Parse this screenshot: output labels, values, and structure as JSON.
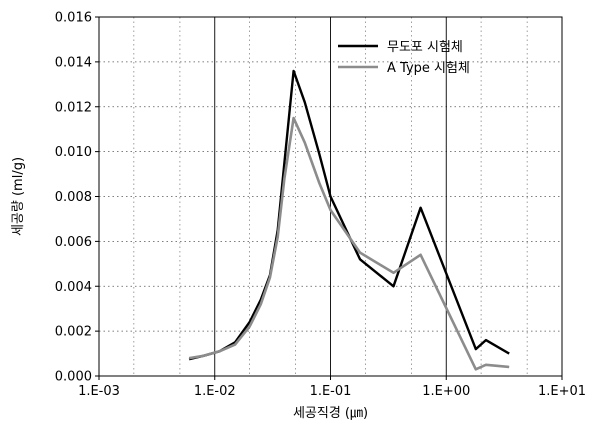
{
  "chart_data": {
    "type": "line",
    "xscale": "log",
    "xlim": [
      0.001,
      10
    ],
    "ylim": [
      0,
      0.016
    ],
    "xticks": [
      0.001,
      0.01,
      0.1,
      1,
      10
    ],
    "xtick_labels": [
      "1.E-03",
      "1.E-02",
      "1.E-01",
      "1.E+00",
      "1.E+01"
    ],
    "yticks": [
      0,
      0.002,
      0.004,
      0.006,
      0.008,
      0.01,
      0.012,
      0.014,
      0.016
    ],
    "ytick_labels": [
      "0.000",
      "0.002",
      "0.004",
      "0.006",
      "0.008",
      "0.010",
      "0.012",
      "0.014",
      "0.016"
    ],
    "xlabel": "세공직경 (㎛)",
    "ylabel": "세공량 (ml/g)",
    "grid": true,
    "legend_position": "top-right",
    "series": [
      {
        "name": "무도포 시험체",
        "color": "#000000",
        "points": [
          [
            0.006,
            0.00075
          ],
          [
            0.008,
            0.0009
          ],
          [
            0.011,
            0.0011
          ],
          [
            0.015,
            0.0015
          ],
          [
            0.02,
            0.0024
          ],
          [
            0.025,
            0.0034
          ],
          [
            0.03,
            0.0045
          ],
          [
            0.035,
            0.0065
          ],
          [
            0.04,
            0.0095
          ],
          [
            0.048,
            0.0136
          ],
          [
            0.06,
            0.0122
          ],
          [
            0.08,
            0.0099
          ],
          [
            0.1,
            0.008
          ],
          [
            0.18,
            0.0052
          ],
          [
            0.35,
            0.004
          ],
          [
            0.6,
            0.0075
          ],
          [
            1.8,
            0.0012
          ],
          [
            2.2,
            0.0016
          ],
          [
            3.5,
            0.001
          ]
        ]
      },
      {
        "name": "A Type 시험체",
        "color": "#8c8c8c",
        "points": [
          [
            0.006,
            0.0008
          ],
          [
            0.008,
            0.0009
          ],
          [
            0.011,
            0.0011
          ],
          [
            0.015,
            0.0014
          ],
          [
            0.02,
            0.0022
          ],
          [
            0.025,
            0.0032
          ],
          [
            0.03,
            0.0044
          ],
          [
            0.035,
            0.0062
          ],
          [
            0.04,
            0.0088
          ],
          [
            0.048,
            0.0115
          ],
          [
            0.06,
            0.0104
          ],
          [
            0.08,
            0.0086
          ],
          [
            0.1,
            0.0074
          ],
          [
            0.18,
            0.0055
          ],
          [
            0.35,
            0.0046
          ],
          [
            0.6,
            0.0054
          ],
          [
            1.8,
            0.0003
          ],
          [
            2.2,
            0.0005
          ],
          [
            3.5,
            0.0004
          ]
        ]
      }
    ]
  }
}
